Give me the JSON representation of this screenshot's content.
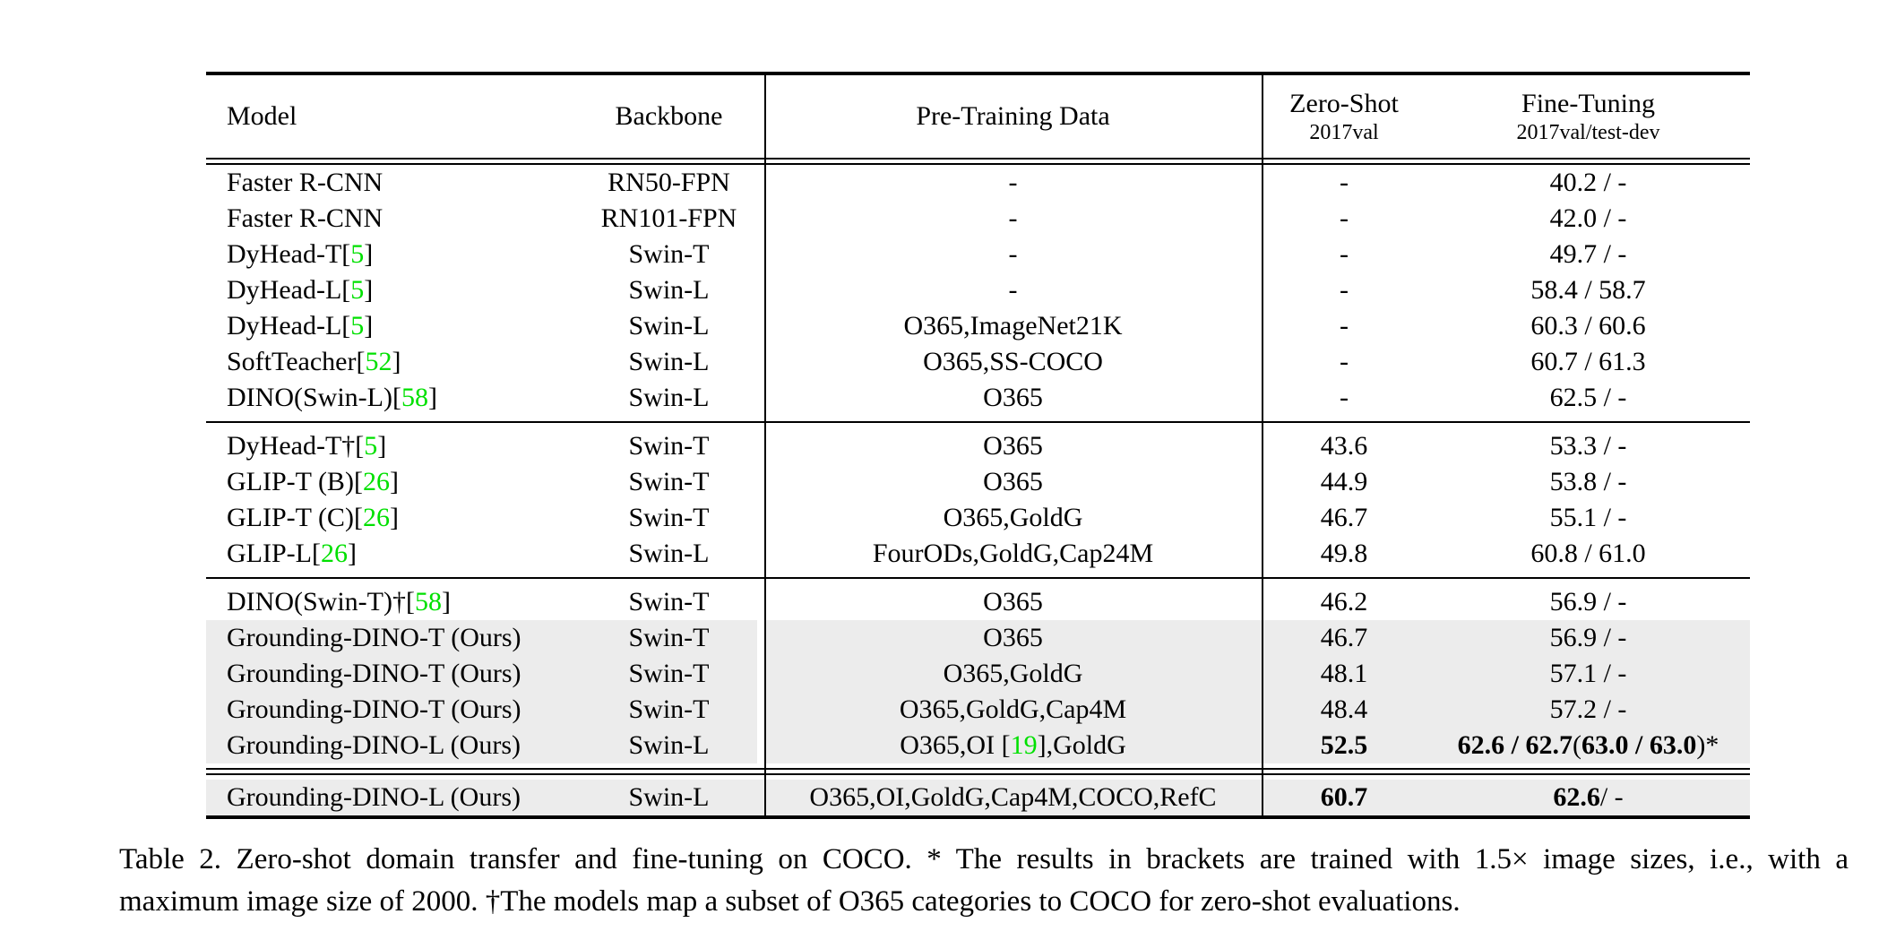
{
  "colors": {
    "citation_green": "#00E000",
    "highlight_gray": "#ECECEC",
    "text_black": "#000000",
    "background": "#ffffff"
  },
  "table": {
    "headers": {
      "model": "Model",
      "backbone": "Backbone",
      "pretrain": "Pre-Training Data",
      "zeroshot_title": "Zero-Shot",
      "zeroshot_sub": "2017val",
      "finetune_title": "Fine-Tuning",
      "finetune_sub": "2017val/test-dev"
    },
    "sections": [
      {
        "rows": [
          {
            "model": "Faster R-CNN",
            "cite": null,
            "backbone": "RN50-FPN",
            "pretrain": [
              {
                "t": "-"
              }
            ],
            "zeroshot": [
              {
                "t": "-"
              }
            ],
            "finetune": [
              {
                "t": "40.2 / -"
              }
            ],
            "highlight": "none"
          },
          {
            "model": "Faster R-CNN",
            "cite": null,
            "backbone": "RN101-FPN",
            "pretrain": [
              {
                "t": "-"
              }
            ],
            "zeroshot": [
              {
                "t": "-"
              }
            ],
            "finetune": [
              {
                "t": "42.0 / -"
              }
            ],
            "highlight": "none"
          },
          {
            "model": "DyHead-T",
            "cite": "5",
            "backbone": "Swin-T",
            "pretrain": [
              {
                "t": "-"
              }
            ],
            "zeroshot": [
              {
                "t": "-"
              }
            ],
            "finetune": [
              {
                "t": "49.7 / -"
              }
            ],
            "highlight": "none"
          },
          {
            "model": "DyHead-L",
            "cite": "5",
            "backbone": "Swin-L",
            "pretrain": [
              {
                "t": "-"
              }
            ],
            "zeroshot": [
              {
                "t": "-"
              }
            ],
            "finetune": [
              {
                "t": "58.4 / 58.7"
              }
            ],
            "highlight": "none"
          },
          {
            "model": "DyHead-L",
            "cite": "5",
            "backbone": "Swin-L",
            "pretrain": [
              {
                "t": "O365,ImageNet21K"
              }
            ],
            "zeroshot": [
              {
                "t": "-"
              }
            ],
            "finetune": [
              {
                "t": "60.3 / 60.6"
              }
            ],
            "highlight": "none"
          },
          {
            "model": "SoftTeacher",
            "cite": "52",
            "backbone": "Swin-L",
            "pretrain": [
              {
                "t": "O365,SS-COCO"
              }
            ],
            "zeroshot": [
              {
                "t": "-"
              }
            ],
            "finetune": [
              {
                "t": "60.7 / 61.3"
              }
            ],
            "highlight": "none"
          },
          {
            "model": "DINO(Swin-L)",
            "cite": "58",
            "backbone": "Swin-L",
            "pretrain": [
              {
                "t": "O365"
              }
            ],
            "zeroshot": [
              {
                "t": "-"
              }
            ],
            "finetune": [
              {
                "t": "62.5 / -"
              }
            ],
            "highlight": "none"
          }
        ]
      },
      {
        "rows": [
          {
            "model": "DyHead-T†",
            "cite": "5",
            "backbone": "Swin-T",
            "pretrain": [
              {
                "t": "O365"
              }
            ],
            "zeroshot": [
              {
                "t": "43.6"
              }
            ],
            "finetune": [
              {
                "t": "53.3 / -"
              }
            ],
            "highlight": "none"
          },
          {
            "model": "GLIP-T (B)",
            "cite": "26",
            "backbone": "Swin-T",
            "pretrain": [
              {
                "t": "O365"
              }
            ],
            "zeroshot": [
              {
                "t": "44.9"
              }
            ],
            "finetune": [
              {
                "t": "53.8 / -"
              }
            ],
            "highlight": "none"
          },
          {
            "model": "GLIP-T (C)",
            "cite": "26",
            "backbone": "Swin-T",
            "pretrain": [
              {
                "t": "O365,GoldG"
              }
            ],
            "zeroshot": [
              {
                "t": "46.7"
              }
            ],
            "finetune": [
              {
                "t": "55.1 / -"
              }
            ],
            "highlight": "none"
          },
          {
            "model": "GLIP-L",
            "cite": "26",
            "backbone": "Swin-L",
            "pretrain": [
              {
                "t": "FourODs,GoldG,Cap24M"
              }
            ],
            "zeroshot": [
              {
                "t": "49.8"
              }
            ],
            "finetune": [
              {
                "t": "60.8 / 61.0"
              }
            ],
            "highlight": "none"
          }
        ]
      },
      {
        "rows": [
          {
            "model": "DINO(Swin-T)†",
            "cite": "58",
            "backbone": "Swin-T",
            "pretrain": [
              {
                "t": "O365"
              }
            ],
            "zeroshot": [
              {
                "t": "46.2"
              }
            ],
            "finetune": [
              {
                "t": "56.9 / -"
              }
            ],
            "highlight": "none"
          },
          {
            "model": "Grounding-DINO-T (Ours)",
            "cite": null,
            "backbone": "Swin-T",
            "pretrain": [
              {
                "t": "O365"
              }
            ],
            "zeroshot": [
              {
                "t": "46.7"
              }
            ],
            "finetune": [
              {
                "t": "56.9 / -"
              }
            ],
            "highlight": "split"
          },
          {
            "model": "Grounding-DINO-T (Ours)",
            "cite": null,
            "backbone": "Swin-T",
            "pretrain": [
              {
                "t": "O365,GoldG"
              }
            ],
            "zeroshot": [
              {
                "t": "48.1"
              }
            ],
            "finetune": [
              {
                "t": "57.1 / -"
              }
            ],
            "highlight": "split"
          },
          {
            "model": "Grounding-DINO-T (Ours)",
            "cite": null,
            "backbone": "Swin-T",
            "pretrain": [
              {
                "t": "O365,GoldG,Cap4M"
              }
            ],
            "zeroshot": [
              {
                "t": "48.4"
              }
            ],
            "finetune": [
              {
                "t": "57.2 / -"
              }
            ],
            "highlight": "split"
          },
          {
            "model": "Grounding-DINO-L (Ours)",
            "cite": null,
            "backbone": "Swin-L",
            "pretrain": [
              {
                "t": "O365,OI ["
              },
              {
                "t": "19",
                "green": true
              },
              {
                "t": "],GoldG"
              }
            ],
            "zeroshot": [
              {
                "t": "52.5",
                "bold": true
              }
            ],
            "finetune": [
              {
                "t": "62.6 / 62.7 ",
                "bold": true
              },
              {
                "t": "("
              },
              {
                "t": "63.0 / 63.0",
                "bold": true
              },
              {
                "t": ")*"
              }
            ],
            "highlight": "split"
          }
        ]
      },
      {
        "rows": [
          {
            "model": "Grounding-DINO-L (Ours)",
            "cite": null,
            "backbone": "Swin-L",
            "pretrain": [
              {
                "t": "O365,OI,GoldG,Cap4M,COCO,RefC"
              }
            ],
            "zeroshot": [
              {
                "t": "60.7",
                "bold": true
              }
            ],
            "finetune": [
              {
                "t": "62.6",
                "bold": true
              },
              {
                "t": " / -"
              }
            ],
            "highlight": "full"
          }
        ]
      }
    ]
  },
  "caption": {
    "line1": "Table 2.  Zero-shot domain transfer and fine-tuning on COCO. * The results in brackets are trained with 1.5× image sizes, i.e., with a",
    "line2": "maximum image size of 2000. †The models map a subset of O365 categories to COCO for zero-shot evaluations."
  }
}
